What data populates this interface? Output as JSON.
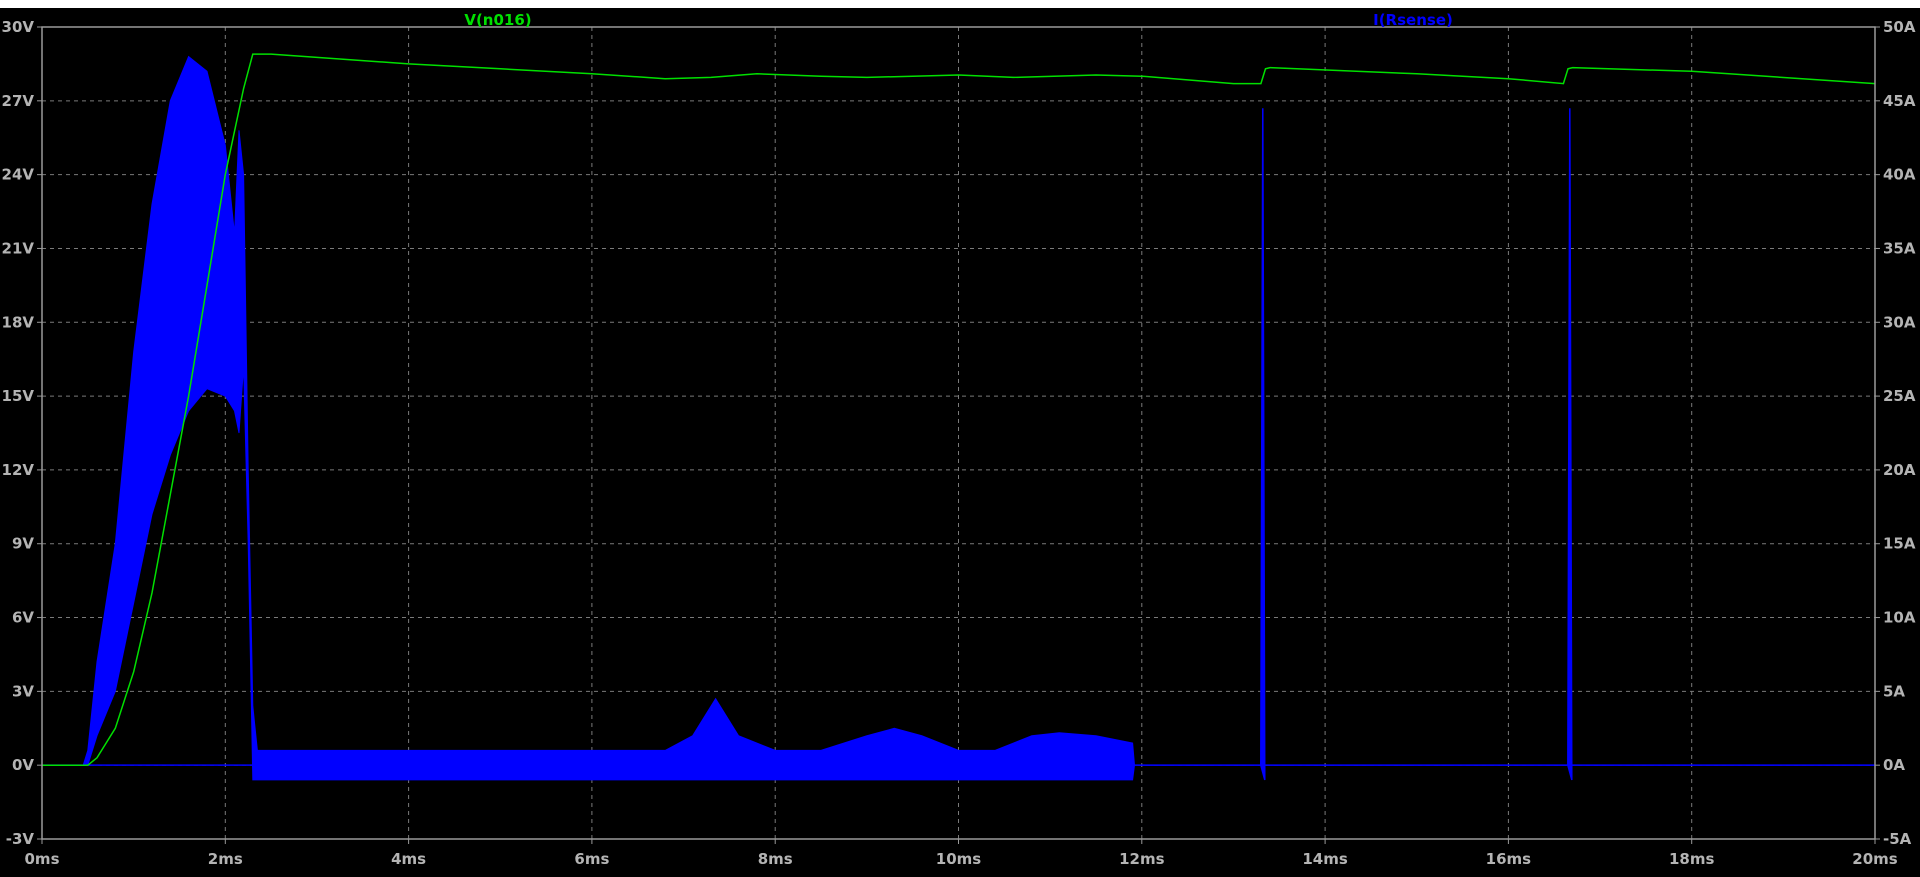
{
  "colors": {
    "background": "#000000",
    "frame": "#9a9a9a",
    "grid": "#7a7a7a",
    "tick_text": "#b4b4b4",
    "voltage_trace": "#00e000",
    "current_trace": "#0000ff"
  },
  "chart_data": {
    "type": "line",
    "grid": true,
    "x_axis": {
      "unit": "ms",
      "range": [
        0,
        20
      ],
      "ticks": [
        0,
        2,
        4,
        6,
        8,
        10,
        12,
        14,
        16,
        18,
        20
      ],
      "tick_labels": [
        "0ms",
        "2ms",
        "4ms",
        "6ms",
        "8ms",
        "10ms",
        "12ms",
        "14ms",
        "16ms",
        "18ms",
        "20ms"
      ]
    },
    "y_left": {
      "unit": "V",
      "range": [
        -3,
        30
      ],
      "ticks": [
        -3,
        0,
        3,
        6,
        9,
        12,
        15,
        18,
        21,
        24,
        27,
        30
      ],
      "tick_labels": [
        "-3V",
        "0V",
        "3V",
        "6V",
        "9V",
        "12V",
        "15V",
        "18V",
        "21V",
        "24V",
        "27V",
        "30V"
      ]
    },
    "y_right": {
      "unit": "A",
      "range": [
        -5,
        50
      ],
      "ticks": [
        -5,
        0,
        5,
        10,
        15,
        20,
        25,
        30,
        35,
        40,
        45,
        50
      ],
      "tick_labels": [
        "-5A",
        "0A",
        "5A",
        "10A",
        "15A",
        "20A",
        "25A",
        "30A",
        "35A",
        "40A",
        "45A",
        "50A"
      ]
    },
    "series": [
      {
        "name": "V(n016)",
        "axis": "left",
        "color": "#00e000",
        "x": [
          0,
          0.5,
          0.6,
          0.8,
          1.0,
          1.2,
          1.4,
          1.6,
          1.8,
          2.0,
          2.2,
          2.3,
          2.5,
          4.0,
          5.0,
          6.0,
          6.8,
          7.3,
          7.8,
          8.5,
          9.0,
          9.5,
          10.0,
          10.6,
          11.5,
          12.0,
          13.0,
          13.3,
          13.35,
          13.4,
          15.0,
          16.0,
          16.6,
          16.65,
          16.7,
          18.0,
          20.0
        ],
        "y": [
          0,
          0,
          0.3,
          1.5,
          3.8,
          7.0,
          11.0,
          15.0,
          19.5,
          24.0,
          27.5,
          28.9,
          28.9,
          28.5,
          28.3,
          28.1,
          27.9,
          27.95,
          28.1,
          28.0,
          27.95,
          28.0,
          28.05,
          27.95,
          28.05,
          28.0,
          27.7,
          27.7,
          28.3,
          28.35,
          28.1,
          27.9,
          27.7,
          28.3,
          28.35,
          28.2,
          27.7
        ]
      },
      {
        "name": "I(Rsense)",
        "axis": "right",
        "color": "#0000ff",
        "envelope_x": [
          0,
          0.45,
          0.5,
          0.6,
          0.8,
          1.0,
          1.2,
          1.4,
          1.6,
          1.8,
          2.0,
          2.1,
          2.15,
          2.2,
          2.25,
          2.3,
          2.35,
          2.4,
          5.0,
          6.8,
          7.1,
          7.35,
          7.6,
          8.0,
          8.5,
          9.0,
          9.3,
          9.6,
          10.0,
          10.4,
          10.8,
          11.1,
          11.5,
          11.9,
          11.92,
          20.0
        ],
        "envelope_max": [
          0,
          0,
          1,
          7,
          15,
          28,
          38,
          45,
          48,
          47,
          42,
          36,
          43,
          40,
          20,
          4,
          1,
          1,
          1,
          1,
          2,
          4.5,
          2,
          1,
          1,
          2,
          2.5,
          2,
          1,
          1,
          2,
          2.2,
          2,
          1.5,
          0,
          0
        ],
        "envelope_min": [
          0,
          0,
          0,
          2,
          5,
          11,
          17,
          21,
          24,
          25.5,
          25,
          24,
          22.5,
          27,
          15,
          -1,
          -1,
          -1,
          -1,
          -1,
          -1,
          -1,
          -1,
          -1,
          -1,
          -1,
          -1,
          -1,
          -1,
          -1,
          -1,
          -1,
          -1,
          -1,
          0,
          0
        ],
        "spikes": [
          {
            "x": 13.32,
            "peak": 44.5,
            "trough": -1
          },
          {
            "x": 16.67,
            "peak": 44.5,
            "trough": -1
          }
        ]
      }
    ]
  }
}
